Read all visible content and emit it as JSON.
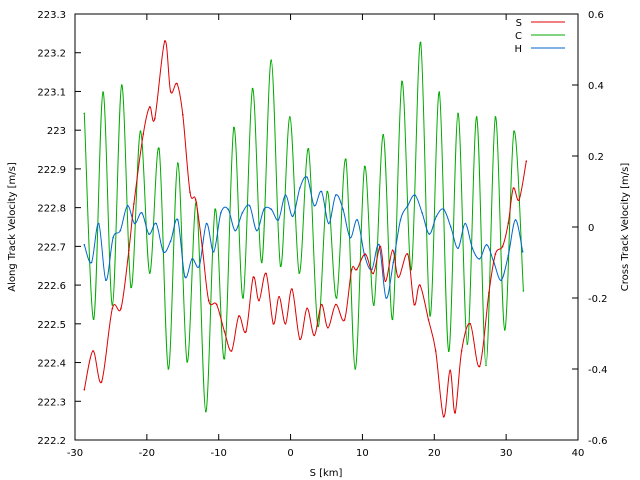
{
  "chart_data": {
    "type": "line",
    "xlabel": "S [km]",
    "ylabel": "Along Track Velocity [m/s]",
    "y2label": "Cross Track Velocity [m/s]",
    "xlim": [
      -30,
      40
    ],
    "ylim": [
      222.2,
      223.3
    ],
    "y2lim": [
      -0.6,
      0.6
    ],
    "xticks": [
      -30,
      -20,
      -10,
      0,
      10,
      20,
      30,
      40
    ],
    "yticks": [
      222.2,
      222.3,
      222.4,
      222.5,
      222.6,
      222.7,
      222.8,
      222.9,
      223,
      223.1,
      223.2,
      223.3
    ],
    "ytick_labels": [
      "222.2",
      "222.3",
      "222.4",
      "222.5",
      "222.6",
      "222.7",
      "222.8",
      "222.9",
      "223",
      "223.1",
      "223.2",
      "223.3"
    ],
    "y2ticks": [
      -0.6,
      -0.4,
      -0.2,
      0,
      0.2,
      0.4,
      0.6
    ],
    "y2tick_labels": [
      "-0.6",
      "-0.4",
      "-0.2",
      "0",
      "0.2",
      "0.4",
      "0.6"
    ],
    "grid": false,
    "legend_position": "top-right",
    "series": [
      {
        "name": "S",
        "axis": "left",
        "color": "#dd0000",
        "x": [
          -28.7,
          -27.5,
          -26.3,
          -24.8,
          -23.6,
          -22.5,
          -21.8,
          -20.5,
          -19.6,
          -18.9,
          -17.5,
          -16.7,
          -15.8,
          -15.0,
          -14.0,
          -13.2,
          -12.3,
          -11.4,
          -10.3,
          -9.2,
          -8.2,
          -7.2,
          -6.2,
          -5.2,
          -4.4,
          -3.4,
          -2.4,
          -1.6,
          -0.7,
          0.2,
          1.3,
          2.3,
          3.3,
          4.3,
          5.2,
          6.3,
          7.5,
          8.5,
          9.2,
          10.4,
          11.5,
          12.5,
          13.2,
          14.2,
          15.0,
          16.3,
          17.2,
          18.0,
          19.2,
          20.2,
          21.3,
          22.2,
          22.9,
          23.8,
          25.0,
          26.3,
          27.6,
          28.5,
          29.5,
          30.3,
          31.0,
          31.8,
          32.8
        ],
        "y": [
          222.33,
          222.43,
          222.35,
          222.54,
          222.54,
          222.69,
          222.81,
          222.99,
          223.06,
          223.03,
          223.23,
          223.1,
          223.12,
          223.04,
          222.84,
          222.82,
          222.7,
          222.56,
          222.55,
          222.48,
          222.43,
          222.52,
          222.48,
          222.62,
          222.56,
          222.63,
          222.5,
          222.57,
          222.5,
          222.59,
          222.46,
          222.54,
          222.47,
          222.55,
          222.49,
          222.55,
          222.51,
          222.64,
          222.64,
          222.68,
          222.63,
          222.7,
          222.61,
          222.69,
          222.62,
          222.68,
          222.55,
          222.6,
          222.51,
          222.43,
          222.26,
          222.38,
          222.27,
          222.43,
          222.5,
          222.39,
          222.58,
          222.68,
          222.7,
          222.76,
          222.85,
          222.82,
          222.92
        ]
      },
      {
        "name": "C",
        "axis": "right",
        "color": "#00aa00",
        "x": [
          -28.7,
          -27.4,
          -26.1,
          -24.8,
          -23.5,
          -22.2,
          -20.9,
          -19.6,
          -18.3,
          -17.0,
          -15.7,
          -14.4,
          -13.1,
          -11.8,
          -10.5,
          -9.2,
          -7.9,
          -6.6,
          -5.3,
          -4.0,
          -2.7,
          -1.4,
          -0.1,
          1.2,
          2.5,
          3.8,
          5.1,
          6.4,
          7.7,
          9.0,
          10.3,
          11.6,
          12.9,
          14.2,
          15.5,
          16.8,
          18.1,
          19.4,
          20.7,
          22.0,
          23.3,
          24.6,
          25.9,
          27.2,
          28.5,
          29.8,
          31.1,
          32.4
        ],
        "y": [
          0.32,
          -0.26,
          0.38,
          -0.22,
          0.4,
          -0.17,
          0.27,
          -0.13,
          0.22,
          -0.4,
          0.18,
          -0.38,
          0.07,
          -0.52,
          0.05,
          -0.37,
          0.28,
          -0.2,
          0.39,
          -0.1,
          0.47,
          -0.11,
          0.31,
          -0.13,
          0.22,
          -0.28,
          0.1,
          -0.2,
          0.19,
          -0.4,
          0.17,
          -0.22,
          0.26,
          -0.26,
          0.41,
          -0.12,
          0.52,
          -0.25,
          0.38,
          -0.35,
          0.32,
          -0.33,
          0.31,
          -0.39,
          0.31,
          -0.29,
          0.27,
          -0.18
        ]
      },
      {
        "name": "H",
        "axis": "right",
        "color": "#0066cc",
        "x": [
          -28.7,
          -27.7,
          -26.7,
          -25.7,
          -24.7,
          -23.7,
          -22.7,
          -21.7,
          -20.7,
          -19.7,
          -18.7,
          -17.7,
          -16.7,
          -15.7,
          -14.7,
          -13.7,
          -12.7,
          -11.7,
          -10.7,
          -9.7,
          -8.7,
          -7.7,
          -6.7,
          -5.7,
          -4.7,
          -3.7,
          -2.7,
          -1.7,
          -0.7,
          0.3,
          1.3,
          2.3,
          3.3,
          4.3,
          5.3,
          6.3,
          7.3,
          8.3,
          9.3,
          10.3,
          11.3,
          12.3,
          13.3,
          14.3,
          15.3,
          16.3,
          17.3,
          18.3,
          19.3,
          20.3,
          21.3,
          22.3,
          23.3,
          24.3,
          25.3,
          26.3,
          27.3,
          28.3,
          29.3,
          30.3,
          31.3,
          32.3
        ],
        "y": [
          -0.05,
          -0.1,
          0.01,
          -0.15,
          -0.03,
          -0.01,
          0.06,
          0.01,
          0.04,
          -0.02,
          0.01,
          -0.07,
          -0.04,
          0.02,
          -0.14,
          -0.09,
          -0.11,
          0.01,
          -0.07,
          0.04,
          0.05,
          -0.01,
          0.04,
          0.06,
          -0.01,
          0.05,
          0.05,
          0.02,
          0.09,
          0.03,
          0.11,
          0.14,
          0.06,
          0.1,
          0.01,
          0.09,
          0.05,
          -0.03,
          0.02,
          -0.08,
          -0.12,
          -0.05,
          -0.2,
          -0.1,
          0.02,
          0.06,
          0.09,
          0.04,
          -0.02,
          0.03,
          0.05,
          0.0,
          -0.06,
          0.01,
          -0.06,
          -0.09,
          -0.05,
          -0.1,
          -0.15,
          -0.08,
          0.02,
          -0.07
        ]
      }
    ]
  }
}
